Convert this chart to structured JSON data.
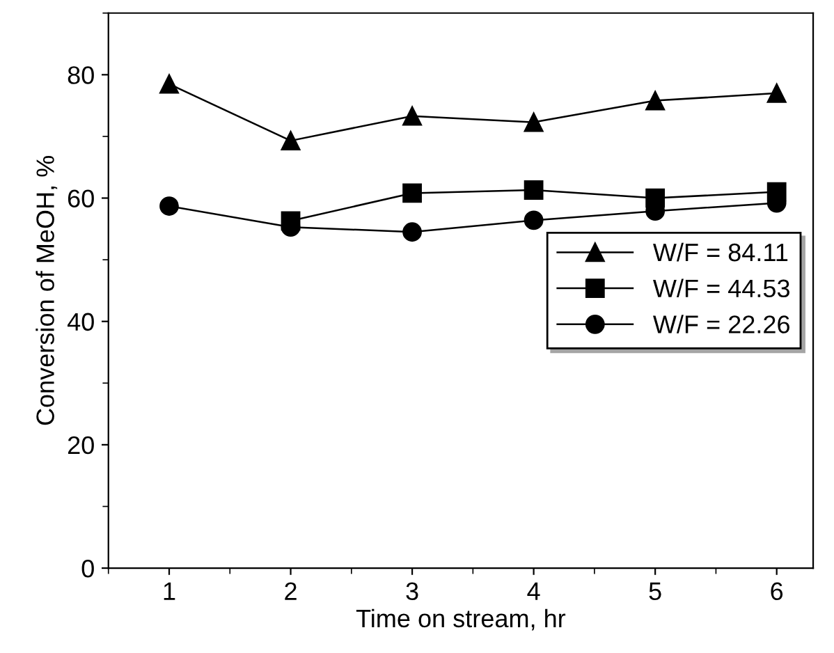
{
  "chart_data": {
    "type": "line",
    "xlabel": "Time on stream, hr",
    "ylabel": "Conversion of MeOH, %",
    "x": [
      1,
      2,
      3,
      4,
      5,
      6
    ],
    "series": [
      {
        "name": "W/F = 84.11",
        "color": "#000000",
        "marker": "triangle",
        "values": [
          78.5,
          69.3,
          73.3,
          72.3,
          75.8,
          77
        ]
      },
      {
        "name": "W/F = 44.53",
        "color": "#000000",
        "marker": "square",
        "values": [
          null,
          56.3,
          60.8,
          61.3,
          60,
          61
        ]
      },
      {
        "name": "W/F = 22.26",
        "color": "#000000",
        "marker": "circle",
        "values": [
          58.7,
          55.3,
          54.5,
          56.4,
          57.9,
          59.2
        ]
      }
    ],
    "xlim": [
      0.5,
      6.3
    ],
    "xticks": [
      1,
      2,
      3,
      4,
      5,
      6
    ],
    "ylim": [
      0,
      90
    ],
    "yticks": [
      0,
      20,
      40,
      60,
      80
    ],
    "grid": false,
    "legend": "right",
    "line_style": "solid"
  }
}
